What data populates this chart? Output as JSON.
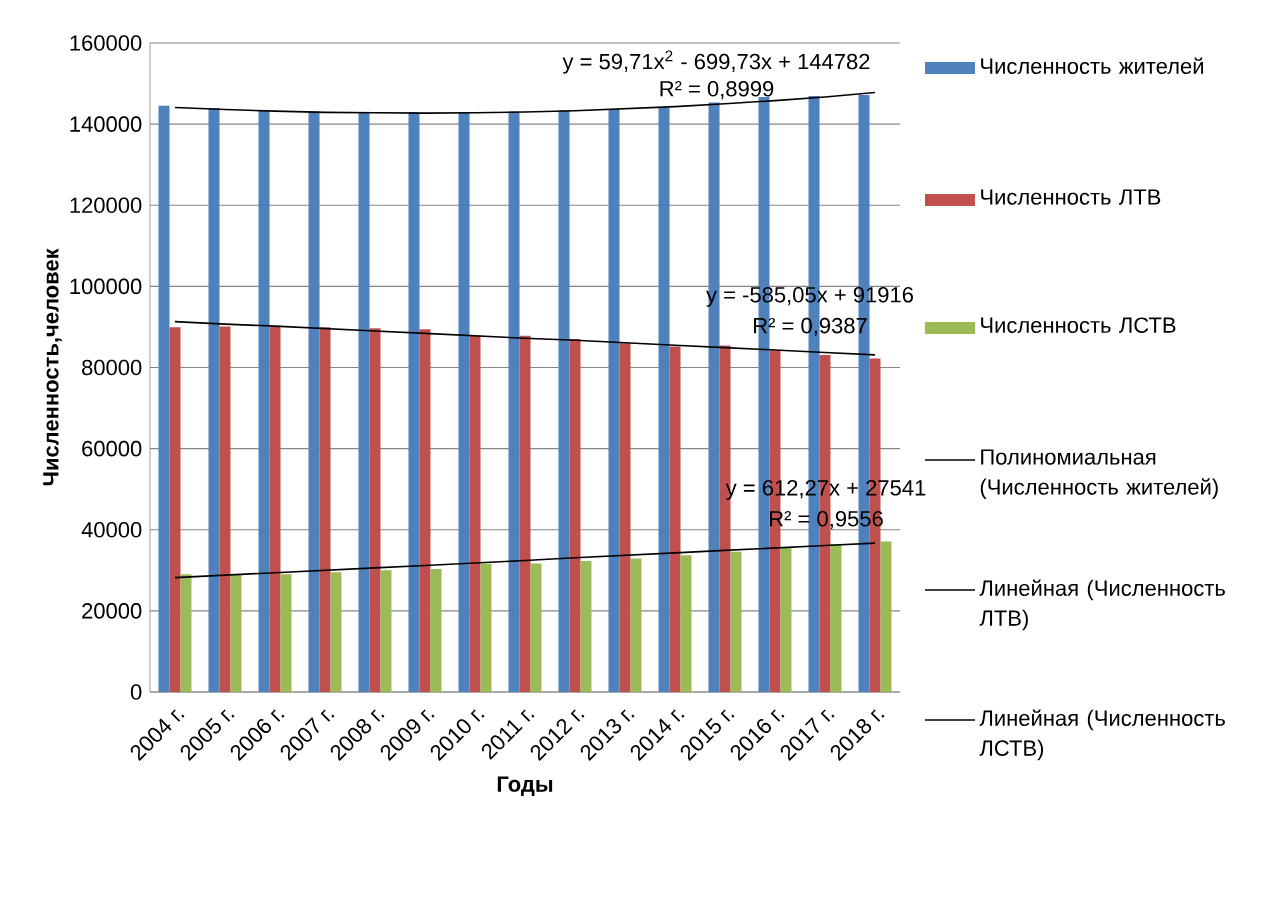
{
  "chart_data": {
    "type": "bar",
    "xlabel": "Годы",
    "ylabel": "Численность,человек",
    "categories": [
      "2004 г.",
      "2005 г.",
      "2006 г.",
      "2007 г.",
      "2008 г.",
      "2009 г.",
      "2010 г.",
      "2011 г.",
      "2012 г.",
      "2013 г.",
      "2014 г.",
      "2015 г.",
      "2016 г.",
      "2017 г.",
      "2018 г."
    ],
    "series": [
      {
        "name": "Численность жителей",
        "type": "bar",
        "color": "#4f81bd",
        "values": [
          144500,
          144000,
          143500,
          143200,
          143000,
          142900,
          142900,
          143100,
          143400,
          143700,
          144000,
          145300,
          146700,
          146900,
          147200
        ]
      },
      {
        "name": "Численность  ЛТВ",
        "type": "bar",
        "color": "#c0504d",
        "values": [
          89900,
          90100,
          90000,
          89900,
          89700,
          89400,
          87900,
          87800,
          87000,
          86000,
          85200,
          85400,
          84200,
          83100,
          82200
        ]
      },
      {
        "name": "Численность  ЛСТВ",
        "type": "bar",
        "color": "#9bbb59",
        "values": [
          29000,
          29100,
          29000,
          29500,
          30000,
          30300,
          31600,
          31700,
          32300,
          32900,
          33700,
          34600,
          35600,
          36400,
          37100
        ]
      },
      {
        "name": "Полиномиальная (Численность жителей)",
        "type": "line",
        "color": "#000000",
        "values": [
          144100,
          143600,
          143200,
          142900,
          142800,
          142700,
          142800,
          143000,
          143300,
          143800,
          144300,
          145000,
          145800,
          146700,
          147800
        ]
      },
      {
        "name": "Линейная (Численность  ЛТВ)",
        "type": "line",
        "color": "#000000",
        "values": [
          91300,
          90700,
          90200,
          89600,
          89000,
          88400,
          87800,
          87200,
          86700,
          86100,
          85500,
          84900,
          84300,
          83700,
          83100
        ]
      },
      {
        "name": "Линейная (Численность  ЛСТВ)",
        "type": "line",
        "color": "#000000",
        "values": [
          28200,
          28800,
          29400,
          30000,
          30600,
          31200,
          31800,
          32400,
          33100,
          33700,
          34300,
          34900,
          35500,
          36100,
          36700
        ]
      }
    ],
    "ylim": [
      0,
      160000
    ],
    "yticks": [
      0,
      20000,
      40000,
      60000,
      80000,
      100000,
      120000,
      140000,
      160000
    ],
    "grid": "y",
    "legend": "right",
    "annotations": [
      "y = 59,71x$^{2}$ - 699,73x + 144782",
      "R² = 0,8999",
      "y = -585,05x + 91916",
      "R² = 0,9387",
      "y = 612,27x + 27541",
      "R² = 0,9556"
    ]
  }
}
